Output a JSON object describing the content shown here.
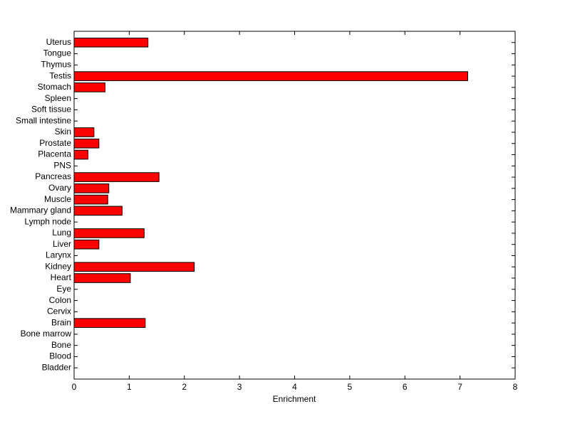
{
  "chart_data": {
    "type": "barh",
    "xlabel": "Enrichment",
    "categories": [
      "Uterus",
      "Tongue",
      "Thymus",
      "Testis",
      "Stomach",
      "Spleen",
      "Soft tissue",
      "Small intestine",
      "Skin",
      "Prostate",
      "Placenta",
      "PNS",
      "Pancreas",
      "Ovary",
      "Muscle",
      "Mammary gland",
      "Lymph node",
      "Lung",
      "Liver",
      "Larynx",
      "Kidney",
      "Heart",
      "Eye",
      "Colon",
      "Cervix",
      "Brain",
      "Bone marrow",
      "Bone",
      "Blood",
      "Bladder"
    ],
    "values": [
      1.34,
      0,
      0,
      7.14,
      0.56,
      0,
      0,
      0,
      0.36,
      0.45,
      0.25,
      0,
      1.54,
      0.63,
      0.61,
      0.87,
      0,
      1.27,
      0.45,
      0,
      2.18,
      1.02,
      0,
      0,
      0,
      1.29,
      0,
      0,
      0,
      0
    ],
    "color": "#ff0000",
    "xlim": [
      0,
      8
    ],
    "xticks": [
      0,
      1,
      2,
      3,
      4,
      5,
      6,
      7,
      8
    ]
  }
}
